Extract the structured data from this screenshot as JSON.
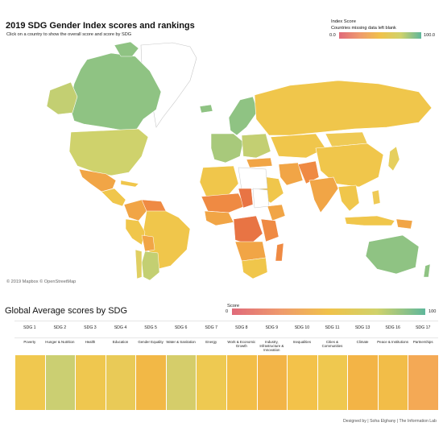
{
  "map": {
    "title": "2019 SDG Gender Index scores and rankings",
    "subtitle": "Click on a country to show the overall score and score by SDG",
    "legend_title": "Index Score",
    "legend_subtitle": "Countries missing data left blank",
    "legend_min": "0.0",
    "legend_max": "100.0",
    "credit": "© 2019 Mapbox © OpenStreetMap",
    "colors": {
      "green": "#8fc383",
      "greenyellow": "#c3cf72",
      "yellow": "#f0c64b",
      "orange": "#f1a546",
      "deeporange": "#ef8a43",
      "red": "#e87444",
      "nodata": "#ffffff"
    }
  },
  "sdg_section": {
    "title": "Global Average scores by SDG",
    "legend_title": "Score",
    "legend_min": "0",
    "legend_max": "100",
    "items": [
      {
        "code": "SDG 1",
        "name": "Poverty",
        "color": "#f0c84f"
      },
      {
        "code": "SDG 2",
        "name": "Hunger & Nutrition",
        "color": "#cbcf72"
      },
      {
        "code": "SDG 3",
        "name": "Health",
        "color": "#efc74f"
      },
      {
        "code": "SDG 4",
        "name": "Education",
        "color": "#e9ca57"
      },
      {
        "code": "SDG 5",
        "name": "Gender Equality",
        "color": "#f2b846"
      },
      {
        "code": "SDG 6",
        "name": "Water & Sanitation",
        "color": "#d5cd6a"
      },
      {
        "code": "SDG 7",
        "name": "Energy",
        "color": "#eec951"
      },
      {
        "code": "SDG 8",
        "name": "Work & Economic Growth",
        "color": "#f2be48"
      },
      {
        "code": "SDG 9",
        "name": "Industry, Infrastructure & Innovation",
        "color": "#f2b447"
      },
      {
        "code": "SDG 10",
        "name": "Inequalities",
        "color": "#f3c24a"
      },
      {
        "code": "SDG 11",
        "name": "Cities & Communities",
        "color": "#efc84f"
      },
      {
        "code": "SDG 13",
        "name": "Climate",
        "color": "#f3b446"
      },
      {
        "code": "SDG 16",
        "name": "Peace & Institutions",
        "color": "#f2bd48"
      },
      {
        "code": "SDG 17",
        "name": "Partnerships",
        "color": "#f4a955"
      }
    ]
  },
  "footer": {
    "designer": "Designed by | Soha Elghany | The Information Lab"
  }
}
